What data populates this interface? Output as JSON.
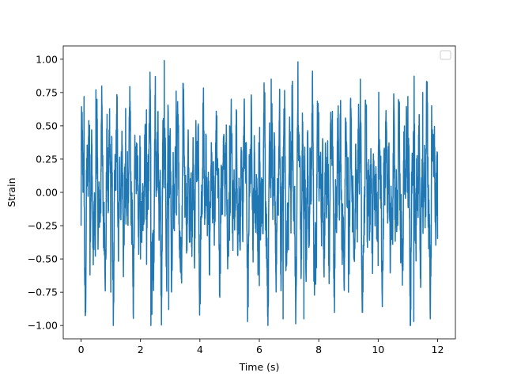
{
  "chart_data": {
    "type": "line",
    "title": "",
    "xlabel": "Time (s)",
    "ylabel": "Strain",
    "xlim": [
      -0.6,
      12.6
    ],
    "ylim": [
      -1.1,
      1.1
    ],
    "x_ticks": [
      0,
      2,
      4,
      6,
      8,
      10,
      12
    ],
    "x_tick_labels": [
      "0",
      "2",
      "4",
      "6",
      "8",
      "10",
      "12"
    ],
    "y_ticks": [
      -1.0,
      -0.75,
      -0.5,
      -0.25,
      0.0,
      0.25,
      0.5,
      0.75,
      1.0
    ],
    "y_tick_labels": [
      "−1.00",
      "−0.75",
      "−0.50",
      "−0.25",
      "0.00",
      "0.25",
      "0.50",
      "0.75",
      "1.00"
    ],
    "grid": false,
    "legend": {
      "position": "upper right",
      "entries": []
    },
    "series": [
      {
        "color": "#1f77b4",
        "x_range": [
          0,
          12
        ],
        "y_range": [
          -1.0,
          1.0
        ],
        "description_points": {
          "x": [
            0.0,
            0.1,
            0.3,
            0.5,
            1.0,
            1.5,
            2.0,
            2.2,
            2.35,
            2.5,
            2.8,
            2.95,
            3.2,
            4.0,
            5.0,
            6.0,
            6.4,
            6.8,
            7.3,
            7.5,
            8.0,
            9.0,
            9.4,
            10.0,
            11.0,
            11.2,
            11.5,
            11.8,
            12.0
          ],
          "y": [
            -0.25,
            0.72,
            -0.62,
            0.77,
            -0.75,
            0.63,
            -0.5,
            0.62,
            -1.0,
            0.87,
            0.99,
            -0.88,
            0.76,
            -0.6,
            0.5,
            -0.7,
            0.85,
            -0.95,
            0.98,
            -0.95,
            0.6,
            -0.75,
            0.85,
            -0.55,
            0.72,
            -0.97,
            0.75,
            0.65,
            -0.35
          ]
        }
      }
    ]
  }
}
